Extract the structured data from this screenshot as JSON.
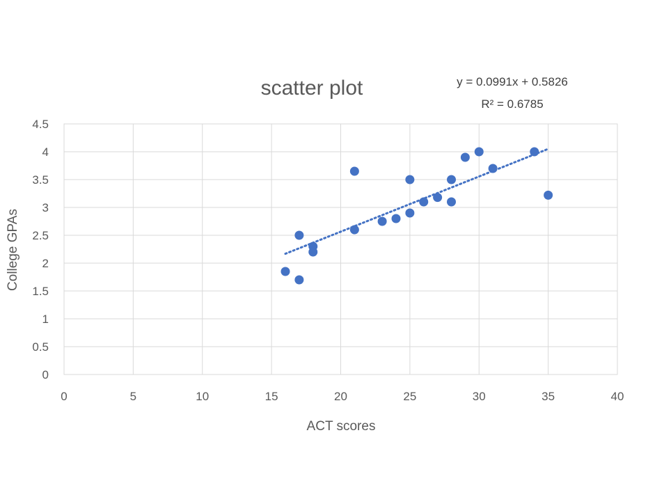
{
  "chart_data": {
    "type": "scatter",
    "title": "scatter plot",
    "xlabel": "ACT scores",
    "ylabel": "College GPAs",
    "xlim": [
      0,
      40
    ],
    "ylim": [
      0,
      4.5
    ],
    "x_ticks": [
      "0",
      "5",
      "10",
      "15",
      "20",
      "25",
      "30",
      "35",
      "40"
    ],
    "y_ticks": [
      "0",
      "0.5",
      "1",
      "1.5",
      "2",
      "2.5",
      "3",
      "3.5",
      "4",
      "4.5"
    ],
    "grid": true,
    "legend": "none",
    "marker_color": "#4472C4",
    "series": [
      {
        "points": [
          {
            "x": 16,
            "y": 1.85
          },
          {
            "x": 17,
            "y": 2.5
          },
          {
            "x": 17,
            "y": 1.7
          },
          {
            "x": 18,
            "y": 2.3
          },
          {
            "x": 18,
            "y": 2.2
          },
          {
            "x": 21,
            "y": 3.65
          },
          {
            "x": 21,
            "y": 2.6
          },
          {
            "x": 23,
            "y": 2.75
          },
          {
            "x": 24,
            "y": 2.8
          },
          {
            "x": 25,
            "y": 3.5
          },
          {
            "x": 25,
            "y": 2.9
          },
          {
            "x": 26,
            "y": 3.1
          },
          {
            "x": 27,
            "y": 3.18
          },
          {
            "x": 28,
            "y": 3.5
          },
          {
            "x": 28,
            "y": 3.1
          },
          {
            "x": 29,
            "y": 3.9
          },
          {
            "x": 30,
            "y": 4.0
          },
          {
            "x": 31,
            "y": 3.7
          },
          {
            "x": 34,
            "y": 4.0
          },
          {
            "x": 35,
            "y": 3.22
          }
        ]
      }
    ],
    "trendline": {
      "type": "linear",
      "style": "dotted",
      "slope": 0.0991,
      "intercept": 0.5826,
      "x_range": [
        16,
        35
      ],
      "equation_label": "y = 0.0991x + 0.5826",
      "r2_label": "R² = 0.6785"
    }
  }
}
